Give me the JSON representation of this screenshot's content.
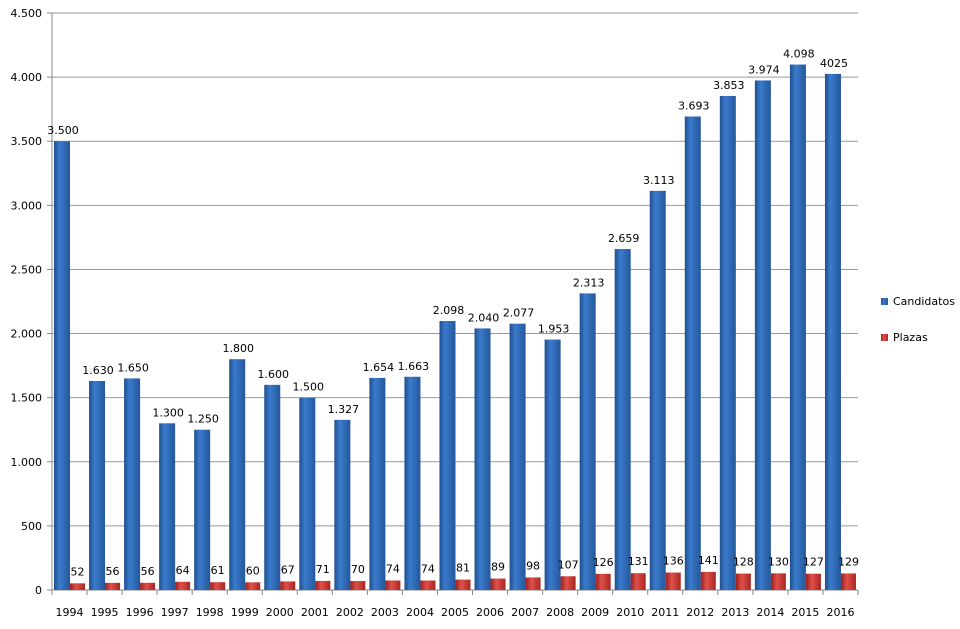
{
  "chart_data": {
    "type": "bar",
    "title": "",
    "xlabel": "",
    "ylabel": "",
    "ylim": [
      0,
      4500
    ],
    "yticks": [
      0,
      500,
      1000,
      1500,
      2000,
      2500,
      3000,
      3500,
      4000,
      4500
    ],
    "ytick_labels": [
      "0",
      "500",
      "1.000",
      "1.500",
      "2.000",
      "2.500",
      "3.000",
      "3.500",
      "4.000",
      "4.500"
    ],
    "grid": true,
    "legend_position": "right",
    "categories": [
      "1994",
      "1995",
      "1996",
      "1997",
      "1998",
      "1999",
      "2000",
      "2001",
      "2002",
      "2003",
      "2004",
      "2005",
      "2006",
      "2007",
      "2008",
      "2009",
      "2010",
      "2011",
      "2012",
      "2013",
      "2014",
      "2015",
      "2016"
    ],
    "series": [
      {
        "name": "Candidatos",
        "color": "#2e6bb8",
        "values": [
          3500,
          1630,
          1650,
          1300,
          1250,
          1800,
          1600,
          1500,
          1327,
          1654,
          1663,
          2098,
          2040,
          2077,
          1953,
          2313,
          2659,
          3113,
          3693,
          3853,
          3974,
          4098,
          4025
        ],
        "labels": [
          "3.500",
          "1.630",
          "1.650",
          "1.300",
          "1.250",
          "1.800",
          "1.600",
          "1.500",
          "1.327",
          "1.654",
          "1.663",
          "2.098",
          "2.040",
          "2.077",
          "1.953",
          "2.313",
          "2.659",
          "3.113",
          "3.693",
          "3.853",
          "3.974",
          "4.098",
          "4025"
        ]
      },
      {
        "name": "Plazas",
        "color": "#c0302c",
        "values": [
          52,
          56,
          56,
          64,
          61,
          60,
          67,
          71,
          70,
          74,
          74,
          81,
          89,
          98,
          107,
          126,
          131,
          136,
          141,
          128,
          130,
          127,
          129
        ],
        "labels": [
          "52",
          "56",
          "56",
          "64",
          "61",
          "60",
          "67",
          "71",
          "70",
          "74",
          "74",
          "81",
          "89",
          "98",
          "107",
          "126",
          "131",
          "136",
          "141",
          "128",
          "130",
          "127",
          "129"
        ]
      }
    ]
  }
}
